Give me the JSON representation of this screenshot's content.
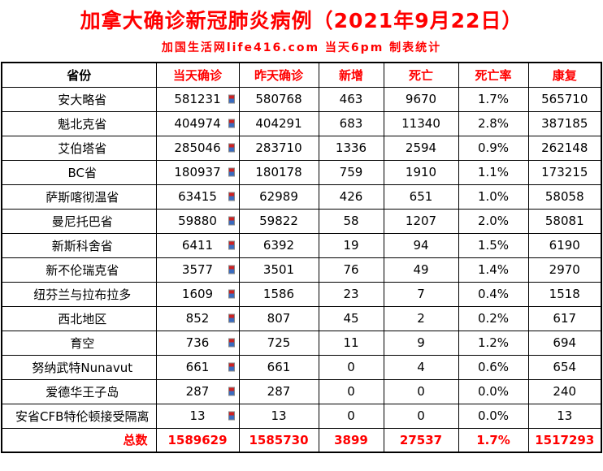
{
  "title": "加拿大确诊新冠肺炎病例（2021年9月22日）",
  "subtitle": "加国生活网life416.com 当天6pm 制表统计",
  "colors": {
    "accent_red": "#ff0000",
    "border_black": "#000000",
    "marker_red": "#cc2222",
    "marker_blue": "#3a6bbf"
  },
  "icons": {
    "today_marker": "trend-marker-icon"
  },
  "table": {
    "headers": [
      "省份",
      "当天确诊",
      "昨天确诊",
      "新增",
      "死亡",
      "死亡率",
      "康复"
    ],
    "rows": [
      {
        "province": "安大略省",
        "today": "581231",
        "yesterday": "580768",
        "new": "463",
        "deaths": "9670",
        "death_rate": "1.7%",
        "recovered": "565710"
      },
      {
        "province": "魁北克省",
        "today": "404974",
        "yesterday": "404291",
        "new": "683",
        "deaths": "11340",
        "death_rate": "2.8%",
        "recovered": "387185"
      },
      {
        "province": "艾伯塔省",
        "today": "285046",
        "yesterday": "283710",
        "new": "1336",
        "deaths": "2594",
        "death_rate": "0.9%",
        "recovered": "262148"
      },
      {
        "province": "BC省",
        "today": "180937",
        "yesterday": "180178",
        "new": "759",
        "deaths": "1910",
        "death_rate": "1.1%",
        "recovered": "173215"
      },
      {
        "province": "萨斯喀彻温省",
        "today": "63415",
        "yesterday": "62989",
        "new": "426",
        "deaths": "651",
        "death_rate": "1.0%",
        "recovered": "58058"
      },
      {
        "province": "曼尼托巴省",
        "today": "59880",
        "yesterday": "59822",
        "new": "58",
        "deaths": "1207",
        "death_rate": "2.0%",
        "recovered": "58081"
      },
      {
        "province": "新斯科舍省",
        "today": "6411",
        "yesterday": "6392",
        "new": "19",
        "deaths": "94",
        "death_rate": "1.5%",
        "recovered": "6190"
      },
      {
        "province": "新不伦瑞克省",
        "today": "3577",
        "yesterday": "3501",
        "new": "76",
        "deaths": "49",
        "death_rate": "1.4%",
        "recovered": "2970"
      },
      {
        "province": "纽芬兰与拉布拉多",
        "today": "1609",
        "yesterday": "1586",
        "new": "23",
        "deaths": "7",
        "death_rate": "0.4%",
        "recovered": "1518"
      },
      {
        "province": "西北地区",
        "today": "852",
        "yesterday": "807",
        "new": "45",
        "deaths": "2",
        "death_rate": "0.2%",
        "recovered": "617"
      },
      {
        "province": "育空",
        "today": "736",
        "yesterday": "725",
        "new": "11",
        "deaths": "9",
        "death_rate": "1.2%",
        "recovered": "694"
      },
      {
        "province": "努纳武特Nunavut",
        "today": "661",
        "yesterday": "661",
        "new": "0",
        "deaths": "4",
        "death_rate": "0.6%",
        "recovered": "654"
      },
      {
        "province": "爱德华王子岛",
        "today": "287",
        "yesterday": "287",
        "new": "0",
        "deaths": "0",
        "death_rate": "0.0%",
        "recovered": "240"
      },
      {
        "province": "安省CFB特伦顿接受隔离",
        "today": "13",
        "yesterday": "13",
        "new": "0",
        "deaths": "0",
        "death_rate": "0.0%",
        "recovered": "13"
      }
    ],
    "total": {
      "label": "总数",
      "today": "1589629",
      "yesterday": "1585730",
      "new": "3899",
      "deaths": "27537",
      "death_rate": "1.7%",
      "recovered": "1517293"
    }
  }
}
